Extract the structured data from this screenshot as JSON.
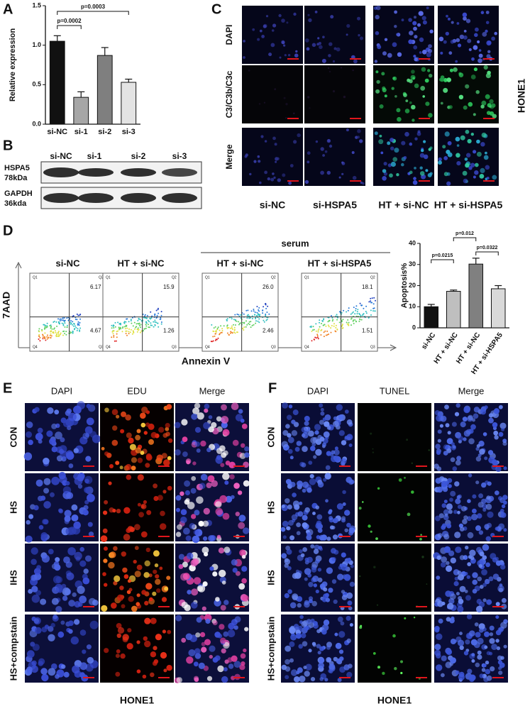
{
  "panel_labels": [
    "A",
    "B",
    "C",
    "D",
    "E",
    "F"
  ],
  "chart_data": [
    {
      "type": "bar",
      "ylabel": "Relative expression",
      "categories": [
        "si-NC",
        "si-1",
        "si-2",
        "si-3"
      ],
      "values": [
        1.05,
        0.34,
        0.87,
        0.53
      ],
      "errors": [
        0.07,
        0.07,
        0.1,
        0.04
      ],
      "colors": [
        "#111111",
        "#a6a6a6",
        "#7f7f7f",
        "#e3e3e3"
      ],
      "ylim": [
        0,
        1.5
      ],
      "yticks": [
        {
          "value": 0,
          "label": "0.0"
        },
        0.5,
        {
          "value": 1,
          "label": "1.0"
        },
        1.5
      ],
      "annotations": [
        "p=0.0002",
        "p=0.0003"
      ]
    },
    {
      "type": "bar",
      "ylabel": "Apoptosis%",
      "categories": [
        "si-NC",
        "HT + si-NC",
        "HT + si-NC",
        "HT + si-HSPA5"
      ],
      "values": [
        10,
        17.3,
        30.2,
        18.5
      ],
      "errors": [
        1.1,
        0.6,
        2.8,
        1.5
      ],
      "colors": [
        "#111111",
        "#bfbfbf",
        "#808080",
        "#d9d9d9"
      ],
      "ylim": [
        0,
        40
      ],
      "yticks": [
        0,
        10,
        20,
        30,
        40
      ],
      "annotations": [
        "p=0.0215",
        "p=0.012",
        "p=0.0322"
      ]
    }
  ],
  "western_blot": {
    "lanes": [
      "si-NC",
      "si-1",
      "si-2",
      "si-3"
    ],
    "rows": [
      {
        "protein": "HSPA5",
        "size": "78kDa"
      },
      {
        "protein": "GAPDH",
        "size": "36kda"
      }
    ]
  },
  "immunofluorescence": {
    "rows": [
      "DAPI",
      "C3/C3b/C3c",
      "Merge"
    ],
    "columns": [
      "si-NC",
      "si-HSPA5",
      "HT + si-NC",
      "HT + si-HSPA5"
    ],
    "cell_line": "HONE1"
  },
  "flow_cytometry": {
    "group_label": "serum",
    "y_axis": "7AAD",
    "x_axis": "Annexin V",
    "quadrant_names": [
      "Q1",
      "Q2",
      "Q3",
      "Q4"
    ],
    "samples": [
      {
        "title": "si-NC",
        "upper_right": "6.17",
        "lower_right": "4.67"
      },
      {
        "title": "HT + si-NC",
        "upper_right": "15.9",
        "lower_right": "1.26"
      },
      {
        "title": "HT + si-NC",
        "upper_right": "26.0",
        "lower_right": "2.46"
      },
      {
        "title": "HT + si-HSPA5",
        "upper_right": "18.1",
        "lower_right": "1.51"
      }
    ]
  },
  "edu_assay": {
    "columns": [
      "DAPI",
      "EDU",
      "Merge"
    ],
    "rows": [
      "CON",
      "HS",
      "IHS",
      "HS+compstain"
    ],
    "cell_line": "HONE1"
  },
  "tunel_assay": {
    "columns": [
      "DAPI",
      "TUNEL",
      "Merge"
    ],
    "rows": [
      "CON",
      "HS",
      "IHS",
      "HS+compstain"
    ],
    "cell_line": "HONE1"
  }
}
